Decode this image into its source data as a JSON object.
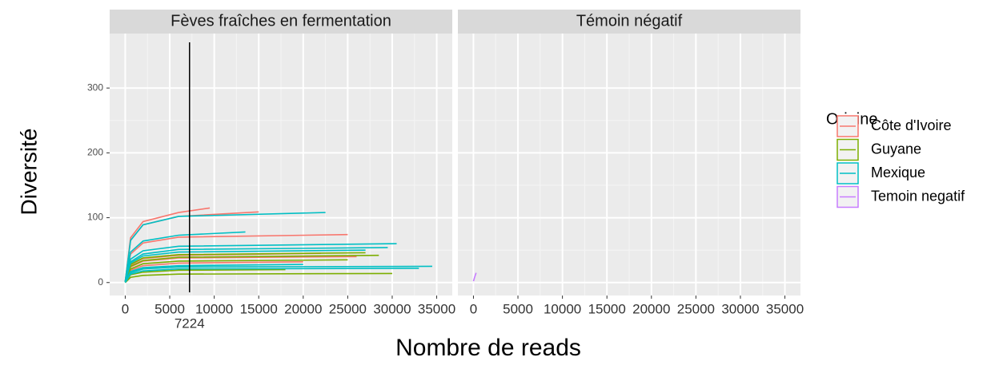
{
  "chart_data": {
    "type": "line",
    "xlabel": "Nombre de reads",
    "ylabel": "Diversité",
    "legend_title": "Origine",
    "xlim": [
      -1750,
      36750
    ],
    "xticks": [
      0,
      5000,
      10000,
      15000,
      20000,
      25000,
      30000,
      35000
    ],
    "ylim": [
      -20,
      384
    ],
    "yticks": [
      0,
      100,
      200,
      300
    ],
    "grid": true,
    "vline": 7224,
    "facets": [
      {
        "title": "Fèves fraîches en fermentation",
        "series": [
          {
            "name": "Côte d'Ivoire",
            "color": "#F8766D",
            "x": [
              0,
              600,
              2000,
              6000,
              9500
            ],
            "values": [
              2,
              69,
              94,
              108,
              115
            ]
          },
          {
            "name": "Côte d'Ivoire",
            "color": "#F8766D",
            "x": [
              0,
              600,
              2000,
              6000,
              15000
            ],
            "values": [
              2,
              65,
              89,
              102,
              109
            ]
          },
          {
            "name": "Côte d'Ivoire",
            "color": "#F8766D",
            "x": [
              0,
              600,
              2000,
              6000,
              25000
            ],
            "values": [
              1,
              44,
              61,
              70,
              74
            ]
          },
          {
            "name": "Côte d'Ivoire",
            "color": "#F8766D",
            "x": [
              0,
              600,
              2000,
              6000,
              22000
            ],
            "values": [
              1,
              27,
              37,
              42,
              45
            ]
          },
          {
            "name": "Côte d'Ivoire",
            "color": "#F8766D",
            "x": [
              0,
              600,
              2000,
              6000,
              26000
            ],
            "values": [
              1,
              24,
              33,
              38,
              40
            ]
          },
          {
            "name": "Côte d'Ivoire",
            "color": "#F8766D",
            "x": [
              0,
              600,
              2000,
              6000,
              20000
            ],
            "values": [
              1,
              19,
              26,
              30,
              32
            ]
          },
          {
            "name": "Guyane",
            "color": "#7CAE00",
            "x": [
              0,
              600,
              2000,
              6000,
              30000
            ],
            "values": [
              0,
              8,
              11,
              13,
              14
            ]
          },
          {
            "name": "Guyane",
            "color": "#7CAE00",
            "x": [
              0,
              600,
              2000,
              6000,
              27000
            ],
            "values": [
              1,
              28,
              38,
              43,
              46
            ]
          },
          {
            "name": "Guyane",
            "color": "#7CAE00",
            "x": [
              0,
              600,
              2000,
              6000,
              28500
            ],
            "values": [
              1,
              25,
              34,
              39,
              42
            ]
          },
          {
            "name": "Guyane",
            "color": "#7CAE00",
            "x": [
              0,
              600,
              2000,
              6000,
              25000
            ],
            "values": [
              1,
              21,
              29,
              33,
              35
            ]
          },
          {
            "name": "Guyane",
            "color": "#7CAE00",
            "x": [
              0,
              600,
              2000,
              6000,
              18000
            ],
            "values": [
              0,
              12,
              16,
              19,
              20
            ]
          },
          {
            "name": "Mexique",
            "color": "#00BFC4",
            "x": [
              0,
              600,
              2000,
              6000,
              22500
            ],
            "values": [
              2,
              65,
              89,
              102,
              108
            ]
          },
          {
            "name": "Mexique",
            "color": "#00BFC4",
            "x": [
              0,
              600,
              2000,
              6000,
              13500
            ],
            "values": [
              2,
              47,
              64,
              73,
              78
            ]
          },
          {
            "name": "Mexique",
            "color": "#00BFC4",
            "x": [
              0,
              600,
              2000,
              6000,
              30500
            ],
            "values": [
              1,
              36,
              49,
              56,
              60
            ]
          },
          {
            "name": "Mexique",
            "color": "#00BFC4",
            "x": [
              0,
              600,
              2000,
              6000,
              29500
            ],
            "values": [
              1,
              32,
              44,
              51,
              54
            ]
          },
          {
            "name": "Mexique",
            "color": "#00BFC4",
            "x": [
              0,
              600,
              2000,
              6000,
              27000
            ],
            "values": [
              1,
              30,
              41,
              47,
              50
            ]
          },
          {
            "name": "Mexique",
            "color": "#00BFC4",
            "x": [
              0,
              600,
              2000,
              6000,
              34500
            ],
            "values": [
              1,
              15,
              21,
              24,
              25
            ]
          },
          {
            "name": "Mexique",
            "color": "#00BFC4",
            "x": [
              0,
              600,
              2000,
              6000,
              33000
            ],
            "values": [
              0,
              13,
              18,
              21,
              22
            ]
          },
          {
            "name": "Mexique",
            "color": "#00BFC4",
            "x": [
              0,
              600,
              2000,
              6000,
              20000
            ],
            "values": [
              1,
              17,
              23,
              26,
              28
            ]
          }
        ]
      },
      {
        "title": "Témoin négatif",
        "series": [
          {
            "name": "Temoin negatif",
            "color": "#C77CFF",
            "x": [
              0,
              150,
              300
            ],
            "values": [
              2,
              9,
              15
            ]
          }
        ]
      }
    ]
  }
}
